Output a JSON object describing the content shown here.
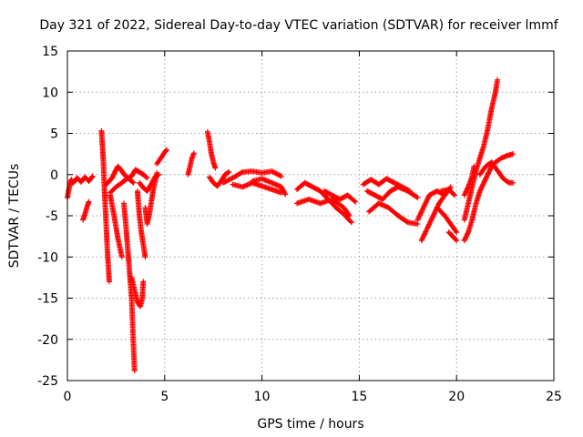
{
  "chart_data": {
    "type": "scatter",
    "title": "Day 321 of 2022, Sidereal Day-to-day VTEC variation (SDTVAR) for receiver lmmf",
    "xlabel": "GPS time / hours",
    "ylabel": "SDTVAR / TECUs",
    "xlim": [
      0,
      25
    ],
    "ylim": [
      -25,
      15
    ],
    "xticks": [
      0,
      5,
      10,
      15,
      20,
      25
    ],
    "yticks": [
      -25,
      -20,
      -15,
      -10,
      -5,
      0,
      5,
      10,
      15
    ],
    "grid": true,
    "marker": "plus",
    "color": "#ff0000",
    "series": [
      {
        "name": "SDTVAR",
        "segments": [
          [
            [
              0.0,
              -2.8
            ],
            [
              0.1,
              -1.5
            ],
            [
              0.2,
              -0.6
            ],
            [
              0.3,
              -1.0
            ],
            [
              0.5,
              -0.4
            ],
            [
              0.7,
              -0.9
            ],
            [
              0.9,
              -0.3
            ],
            [
              1.1,
              -0.8
            ],
            [
              1.3,
              -0.2
            ]
          ],
          [
            [
              0.8,
              -5.5
            ],
            [
              0.9,
              -4.8
            ],
            [
              1.0,
              -4.0
            ],
            [
              1.1,
              -3.3
            ]
          ],
          [
            [
              1.75,
              5.3
            ],
            [
              1.8,
              3.5
            ],
            [
              1.85,
              1.5
            ],
            [
              1.9,
              -1.5
            ],
            [
              1.95,
              -4.0
            ],
            [
              2.0,
              -6.5
            ],
            [
              2.05,
              -9.0
            ],
            [
              2.1,
              -11.0
            ],
            [
              2.15,
              -13.0
            ]
          ],
          [
            [
              2.2,
              -2.5
            ],
            [
              2.4,
              -5.0
            ],
            [
              2.6,
              -7.8
            ],
            [
              2.8,
              -10.0
            ]
          ],
          [
            [
              2.0,
              -1.2
            ],
            [
              2.3,
              -0.4
            ],
            [
              2.5,
              0.6
            ],
            [
              2.6,
              1.0
            ],
            [
              2.8,
              0.4
            ],
            [
              3.0,
              -0.2
            ],
            [
              3.2,
              -0.6
            ],
            [
              3.4,
              -1.0
            ]
          ],
          [
            [
              2.2,
              -2.2
            ],
            [
              2.5,
              -1.5
            ],
            [
              2.8,
              -1.0
            ],
            [
              3.0,
              -0.6
            ],
            [
              3.3,
              -0.2
            ],
            [
              3.5,
              0.6
            ],
            [
              3.7,
              0.3
            ],
            [
              3.9,
              0.0
            ],
            [
              4.1,
              -0.4
            ]
          ],
          [
            [
              2.9,
              -3.5
            ],
            [
              3.0,
              -6.0
            ],
            [
              3.1,
              -9.0
            ],
            [
              3.2,
              -12.0
            ],
            [
              3.3,
              -15.0
            ],
            [
              3.35,
              -18.0
            ],
            [
              3.4,
              -21.0
            ],
            [
              3.45,
              -23.8
            ]
          ],
          [
            [
              3.3,
              -12.5
            ],
            [
              3.45,
              -14.0
            ],
            [
              3.6,
              -15.5
            ],
            [
              3.75,
              -16.0
            ],
            [
              3.85,
              -15.0
            ],
            [
              3.9,
              -13.0
            ]
          ],
          [
            [
              3.6,
              -2.0
            ],
            [
              3.7,
              -5.0
            ],
            [
              3.8,
              -7.0
            ],
            [
              3.9,
              -8.5
            ],
            [
              4.0,
              -10.0
            ]
          ],
          [
            [
              3.7,
              -1.0
            ],
            [
              3.9,
              -1.6
            ],
            [
              4.1,
              -2.0
            ],
            [
              4.3,
              -1.2
            ],
            [
              4.5,
              -0.3
            ],
            [
              4.7,
              0.0
            ]
          ],
          [
            [
              4.0,
              -4.0
            ],
            [
              4.1,
              -6.0
            ],
            [
              4.2,
              -5.0
            ],
            [
              4.3,
              -3.5
            ],
            [
              4.4,
              -2.0
            ],
            [
              4.5,
              -1.0
            ],
            [
              4.6,
              0.2
            ]
          ],
          [
            [
              4.6,
              1.3
            ],
            [
              4.8,
              2.0
            ],
            [
              5.0,
              2.7
            ],
            [
              5.1,
              3.0
            ]
          ],
          [
            [
              6.2,
              0.0
            ],
            [
              6.3,
              1.0
            ],
            [
              6.4,
              2.0
            ],
            [
              6.5,
              2.6
            ]
          ],
          [
            [
              7.2,
              5.2
            ],
            [
              7.3,
              4.0
            ],
            [
              7.4,
              2.5
            ],
            [
              7.5,
              1.5
            ],
            [
              7.6,
              0.8
            ]
          ],
          [
            [
              7.3,
              -0.3
            ],
            [
              7.5,
              -1.0
            ],
            [
              7.7,
              -1.4
            ],
            [
              7.9,
              -0.8
            ],
            [
              8.1,
              0.0
            ],
            [
              8.3,
              0.3
            ]
          ],
          [
            [
              8.0,
              -1.0
            ],
            [
              8.5,
              -0.4
            ],
            [
              9.0,
              0.3
            ],
            [
              9.5,
              0.4
            ],
            [
              10.0,
              0.2
            ],
            [
              10.5,
              0.4
            ],
            [
              11.0,
              -0.2
            ]
          ],
          [
            [
              8.5,
              -1.2
            ],
            [
              9.0,
              -1.5
            ],
            [
              9.5,
              -1.0
            ],
            [
              10.0,
              -1.4
            ],
            [
              10.5,
              -1.8
            ],
            [
              11.0,
              -2.2
            ]
          ],
          [
            [
              9.5,
              -0.8
            ],
            [
              10.0,
              -0.5
            ],
            [
              10.5,
              -1.0
            ],
            [
              11.0,
              -1.5
            ],
            [
              11.2,
              -2.4
            ]
          ],
          [
            [
              11.8,
              -1.8
            ],
            [
              12.2,
              -1.0
            ],
            [
              12.6,
              -1.5
            ],
            [
              13.0,
              -2.0
            ],
            [
              13.4,
              -3.0
            ],
            [
              13.8,
              -4.0
            ],
            [
              14.2,
              -4.8
            ],
            [
              14.6,
              -5.8
            ]
          ],
          [
            [
              11.8,
              -3.5
            ],
            [
              12.4,
              -3.0
            ],
            [
              13.0,
              -3.5
            ],
            [
              13.6,
              -3.0
            ],
            [
              14.2,
              -4.0
            ],
            [
              14.5,
              -5.0
            ]
          ],
          [
            [
              13.2,
              -2.0
            ],
            [
              13.6,
              -2.5
            ],
            [
              14.0,
              -3.0
            ],
            [
              14.4,
              -2.5
            ],
            [
              14.8,
              -3.3
            ]
          ],
          [
            [
              15.2,
              -1.2
            ],
            [
              15.6,
              -0.6
            ],
            [
              16.0,
              -1.2
            ],
            [
              16.4,
              -0.5
            ],
            [
              16.8,
              -1.0
            ],
            [
              17.2,
              -1.5
            ],
            [
              17.6,
              -2.0
            ]
          ],
          [
            [
              15.4,
              -2.0
            ],
            [
              15.8,
              -2.5
            ],
            [
              16.2,
              -3.0
            ],
            [
              16.6,
              -2.0
            ],
            [
              17.0,
              -1.5
            ],
            [
              17.5,
              -2.0
            ],
            [
              18.0,
              -2.8
            ]
          ],
          [
            [
              15.5,
              -4.5
            ],
            [
              16.0,
              -3.5
            ],
            [
              16.5,
              -4.0
            ],
            [
              17.0,
              -5.0
            ],
            [
              17.5,
              -5.8
            ],
            [
              18.0,
              -6.0
            ]
          ],
          [
            [
              18.0,
              -5.5
            ],
            [
              18.3,
              -4.0
            ],
            [
              18.6,
              -2.5
            ],
            [
              19.0,
              -2.0
            ],
            [
              19.4,
              -2.5
            ]
          ],
          [
            [
              18.2,
              -8.0
            ],
            [
              18.5,
              -6.5
            ],
            [
              18.8,
              -5.0
            ],
            [
              19.1,
              -3.5
            ],
            [
              19.4,
              -2.5
            ],
            [
              19.7,
              -1.5
            ]
          ],
          [
            [
              19.0,
              -4.0
            ],
            [
              19.4,
              -5.0
            ],
            [
              19.7,
              -6.0
            ],
            [
              20.0,
              -7.0
            ]
          ],
          [
            [
              19.6,
              -7.0
            ],
            [
              19.8,
              -7.5
            ],
            [
              20.0,
              -8.0
            ]
          ],
          [
            [
              19.2,
              -2.0
            ],
            [
              19.6,
              -1.8
            ],
            [
              19.9,
              -2.5
            ]
          ],
          [
            [
              20.4,
              -2.5
            ],
            [
              20.6,
              -1.5
            ],
            [
              20.8,
              -0.2
            ],
            [
              20.9,
              1.0
            ]
          ],
          [
            [
              20.4,
              -5.5
            ],
            [
              20.6,
              -3.5
            ],
            [
              20.8,
              -1.5
            ],
            [
              21.0,
              0.5
            ],
            [
              21.2,
              2.0
            ],
            [
              21.4,
              3.5
            ],
            [
              21.6,
              5.5
            ],
            [
              21.8,
              8.0
            ],
            [
              22.0,
              10.0
            ],
            [
              22.1,
              11.5
            ]
          ],
          [
            [
              20.4,
              -8.0
            ],
            [
              20.6,
              -7.0
            ],
            [
              20.8,
              -5.5
            ],
            [
              21.0,
              -3.5
            ],
            [
              21.2,
              -2.0
            ],
            [
              21.4,
              -1.0
            ],
            [
              21.6,
              0.0
            ],
            [
              21.8,
              1.0
            ],
            [
              22.0,
              1.5
            ],
            [
              22.3,
              2.0
            ],
            [
              22.6,
              2.3
            ],
            [
              22.9,
              2.5
            ]
          ],
          [
            [
              21.2,
              0.0
            ],
            [
              21.5,
              1.0
            ],
            [
              21.8,
              1.5
            ],
            [
              22.1,
              0.5
            ],
            [
              22.4,
              -0.5
            ],
            [
              22.7,
              -1.0
            ],
            [
              22.9,
              -1.0
            ]
          ]
        ]
      }
    ]
  }
}
